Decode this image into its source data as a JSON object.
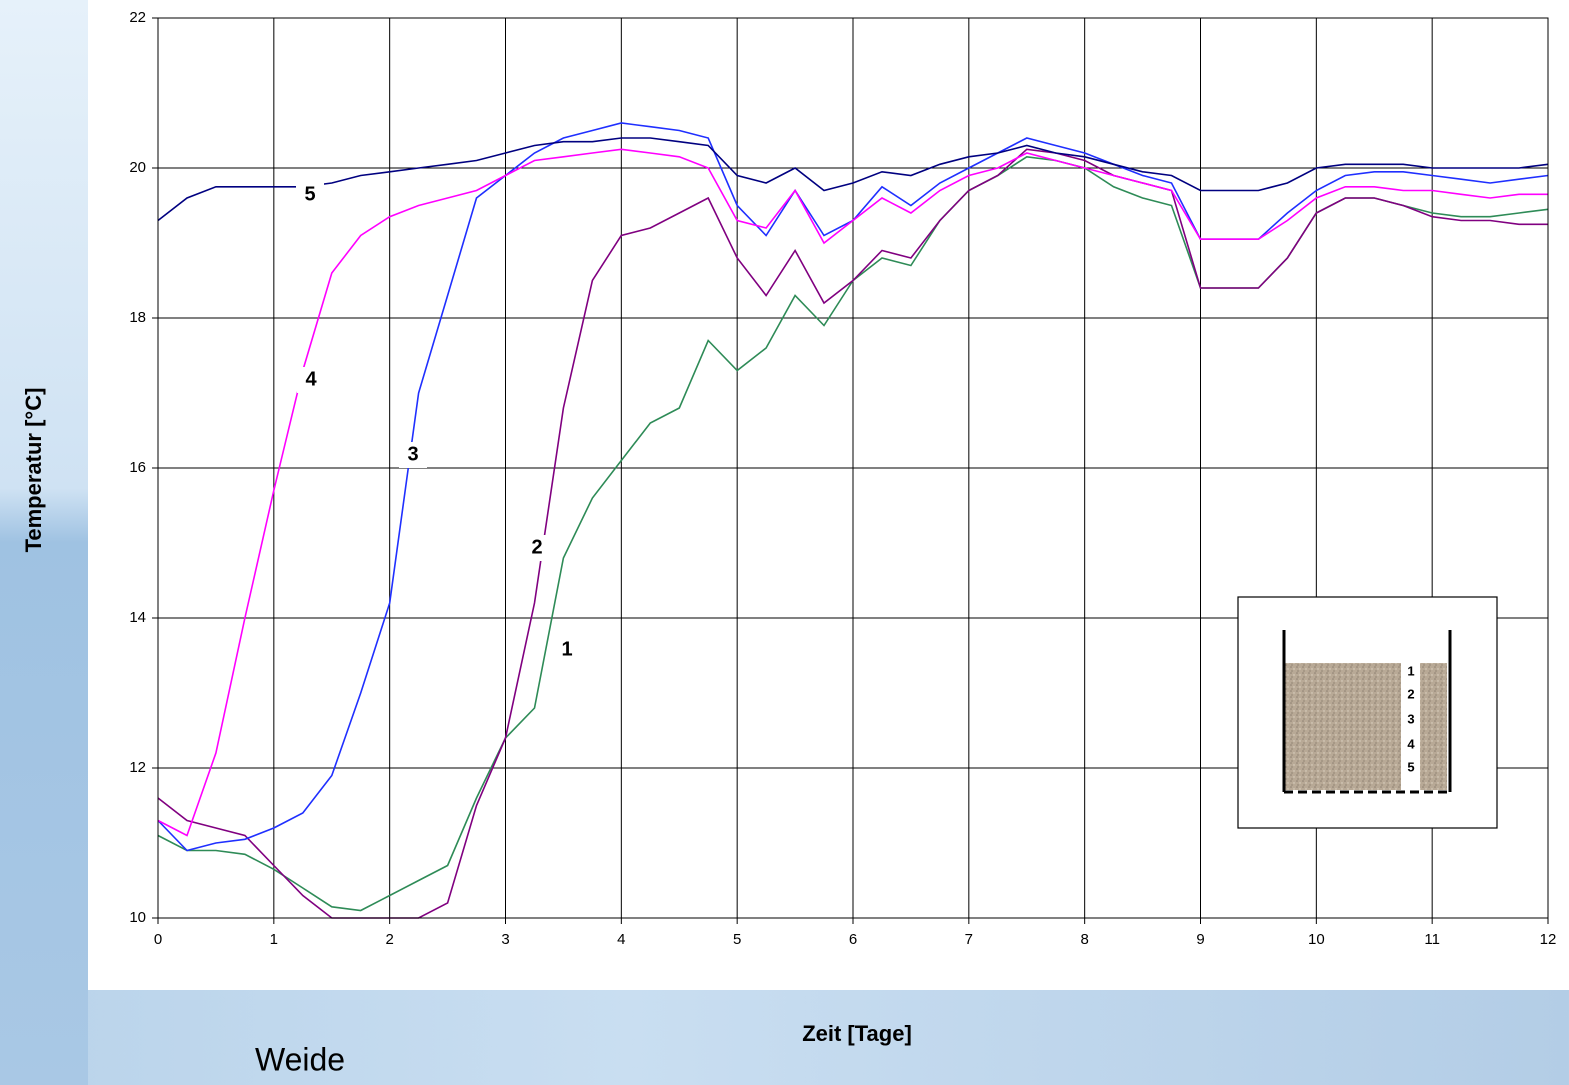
{
  "chart_data": {
    "type": "line",
    "y_label": "Temperatur [°C]",
    "x_label": "Zeit [Tage]",
    "caption": "Weide",
    "xlim": [
      0,
      12
    ],
    "xticks": [
      0,
      1,
      2,
      3,
      4,
      5,
      6,
      7,
      8,
      9,
      10,
      11,
      12
    ],
    "ylim": [
      10,
      22
    ],
    "yticks": [
      10,
      12,
      14,
      16,
      18,
      20,
      22
    ],
    "grid": true,
    "x": [
      0,
      0.25,
      0.5,
      0.75,
      1,
      1.25,
      1.5,
      1.75,
      2,
      2.25,
      2.5,
      2.75,
      3,
      3.25,
      3.5,
      3.75,
      4,
      4.25,
      4.5,
      4.75,
      5,
      5.25,
      5.5,
      5.75,
      6,
      6.25,
      6.5,
      6.75,
      7,
      7.25,
      7.5,
      7.75,
      8,
      8.25,
      8.5,
      8.75,
      9,
      9.25,
      9.5,
      9.75,
      10,
      10.25,
      10.5,
      10.75,
      11,
      11.25,
      11.5,
      11.75,
      12
    ],
    "series": [
      {
        "name": "1",
        "color": "#2e8b57",
        "values": [
          11.1,
          10.9,
          10.9,
          10.85,
          10.65,
          10.4,
          10.15,
          10.1,
          10.3,
          10.5,
          10.7,
          11.6,
          12.4,
          12.8,
          14.8,
          15.6,
          16.1,
          16.6,
          16.8,
          17.7,
          17.3,
          17.6,
          18.3,
          17.9,
          18.5,
          18.8,
          18.7,
          19.3,
          19.7,
          19.9,
          20.15,
          20.1,
          20.0,
          19.75,
          19.6,
          19.5,
          18.4,
          18.4,
          18.4,
          18.8,
          19.4,
          19.6,
          19.6,
          19.5,
          19.4,
          19.35,
          19.35,
          19.4,
          19.45
        ]
      },
      {
        "name": "2",
        "color": "#800080",
        "values": [
          11.6,
          11.3,
          11.2,
          11.1,
          10.7,
          10.3,
          10.0,
          10.0,
          10.0,
          10.0,
          10.2,
          11.5,
          12.4,
          14.2,
          16.8,
          18.5,
          19.1,
          19.2,
          19.4,
          19.6,
          18.8,
          18.3,
          18.9,
          18.2,
          18.5,
          18.9,
          18.8,
          19.3,
          19.7,
          19.9,
          20.25,
          20.2,
          20.1,
          19.9,
          19.8,
          19.7,
          18.4,
          18.4,
          18.4,
          18.8,
          19.4,
          19.6,
          19.6,
          19.5,
          19.35,
          19.3,
          19.3,
          19.25,
          19.25
        ]
      },
      {
        "name": "3",
        "color": "#1f2fff",
        "values": [
          11.3,
          10.9,
          11.0,
          11.05,
          11.2,
          11.4,
          11.9,
          13.0,
          14.2,
          17.0,
          18.3,
          19.6,
          19.9,
          20.2,
          20.4,
          20.5,
          20.6,
          20.55,
          20.5,
          20.4,
          19.5,
          19.1,
          19.7,
          19.1,
          19.3,
          19.75,
          19.5,
          19.8,
          20.0,
          20.2,
          20.4,
          20.3,
          20.2,
          20.05,
          19.9,
          19.8,
          19.05,
          19.05,
          19.05,
          19.4,
          19.7,
          19.9,
          19.95,
          19.95,
          19.9,
          19.85,
          19.8,
          19.85,
          19.9
        ]
      },
      {
        "name": "4",
        "color": "#ff00ff",
        "values": [
          11.3,
          11.1,
          12.2,
          14.0,
          15.7,
          17.3,
          18.6,
          19.1,
          19.35,
          19.5,
          19.6,
          19.7,
          19.9,
          20.1,
          20.15,
          20.2,
          20.25,
          20.2,
          20.15,
          20.0,
          19.3,
          19.2,
          19.7,
          19.0,
          19.3,
          19.6,
          19.4,
          19.7,
          19.9,
          20.0,
          20.2,
          20.1,
          20.0,
          19.9,
          19.8,
          19.7,
          19.05,
          19.05,
          19.05,
          19.3,
          19.6,
          19.75,
          19.75,
          19.7,
          19.7,
          19.65,
          19.6,
          19.65,
          19.65
        ]
      },
      {
        "name": "5",
        "color": "#000080",
        "values": [
          19.3,
          19.6,
          19.75,
          19.75,
          19.75,
          19.75,
          19.8,
          19.9,
          19.95,
          20.0,
          20.05,
          20.1,
          20.2,
          20.3,
          20.35,
          20.35,
          20.4,
          20.4,
          20.35,
          20.3,
          19.9,
          19.8,
          20.0,
          19.7,
          19.8,
          19.95,
          19.9,
          20.05,
          20.15,
          20.2,
          20.3,
          20.2,
          20.15,
          20.05,
          19.95,
          19.9,
          19.7,
          19.7,
          19.7,
          19.8,
          20.0,
          20.05,
          20.05,
          20.05,
          20.0,
          20.0,
          20.0,
          20.0,
          20.05
        ]
      }
    ]
  }
}
